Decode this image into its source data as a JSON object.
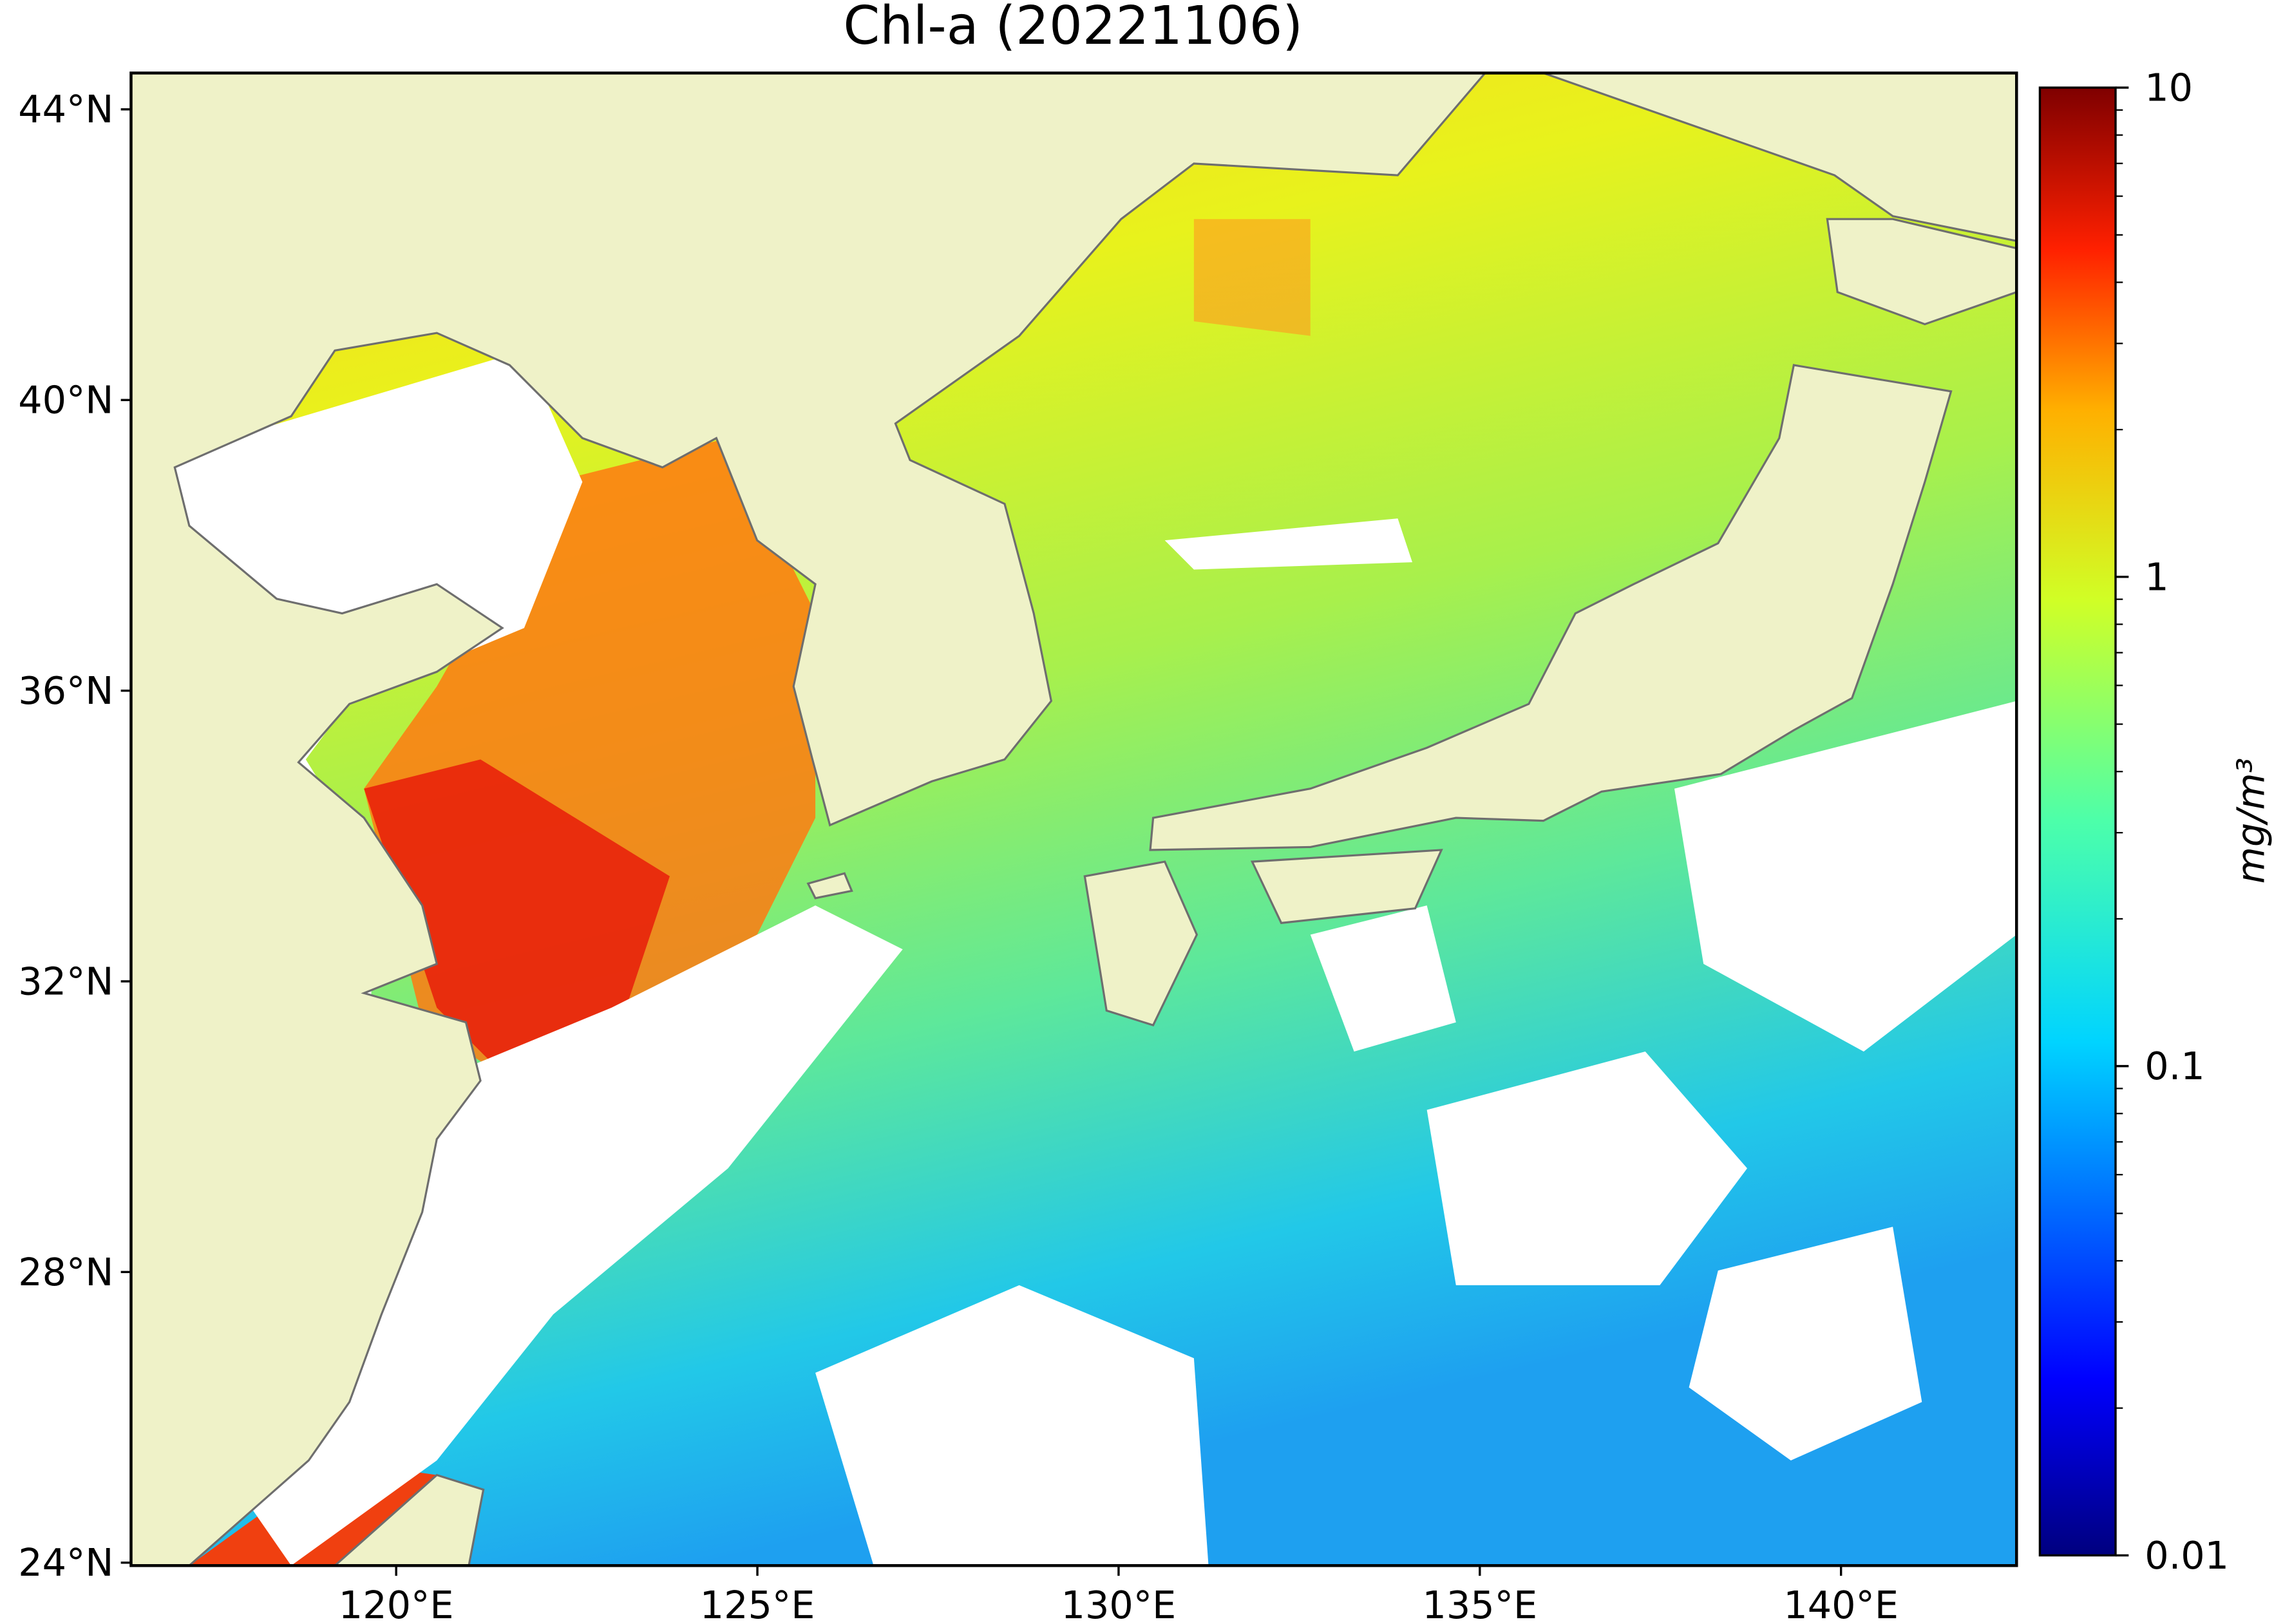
{
  "title": "Chl-a (20221106)",
  "map": {
    "xlim": [
      116.33,
      142.43
    ],
    "ylim": [
      23.96,
      44.5
    ],
    "xticks": [
      {
        "value": 120,
        "label": "120°E"
      },
      {
        "value": 125,
        "label": "125°E"
      },
      {
        "value": 130,
        "label": "130°E"
      },
      {
        "value": 135,
        "label": "135°E"
      },
      {
        "value": 140,
        "label": "140°E"
      }
    ],
    "yticks": [
      {
        "value": 24,
        "label": "24°N"
      },
      {
        "value": 28,
        "label": "28°N"
      },
      {
        "value": 32,
        "label": "32°N"
      },
      {
        "value": 36,
        "label": "36°N"
      },
      {
        "value": 40,
        "label": "40°N"
      },
      {
        "value": 44,
        "label": "44°N"
      }
    ]
  },
  "colorbar": {
    "label": "mg/m³",
    "scale": "log",
    "lim": [
      0.01,
      10
    ],
    "ticks": [
      0.01,
      0.1,
      1,
      10
    ],
    "minor_ticks": [
      0.02,
      0.03,
      0.04,
      0.05,
      0.06,
      0.07,
      0.08,
      0.09,
      0.2,
      0.3,
      0.4,
      0.5,
      0.6,
      0.7,
      0.8,
      0.9,
      2,
      3,
      4,
      5,
      6,
      7,
      8,
      9
    ]
  }
}
